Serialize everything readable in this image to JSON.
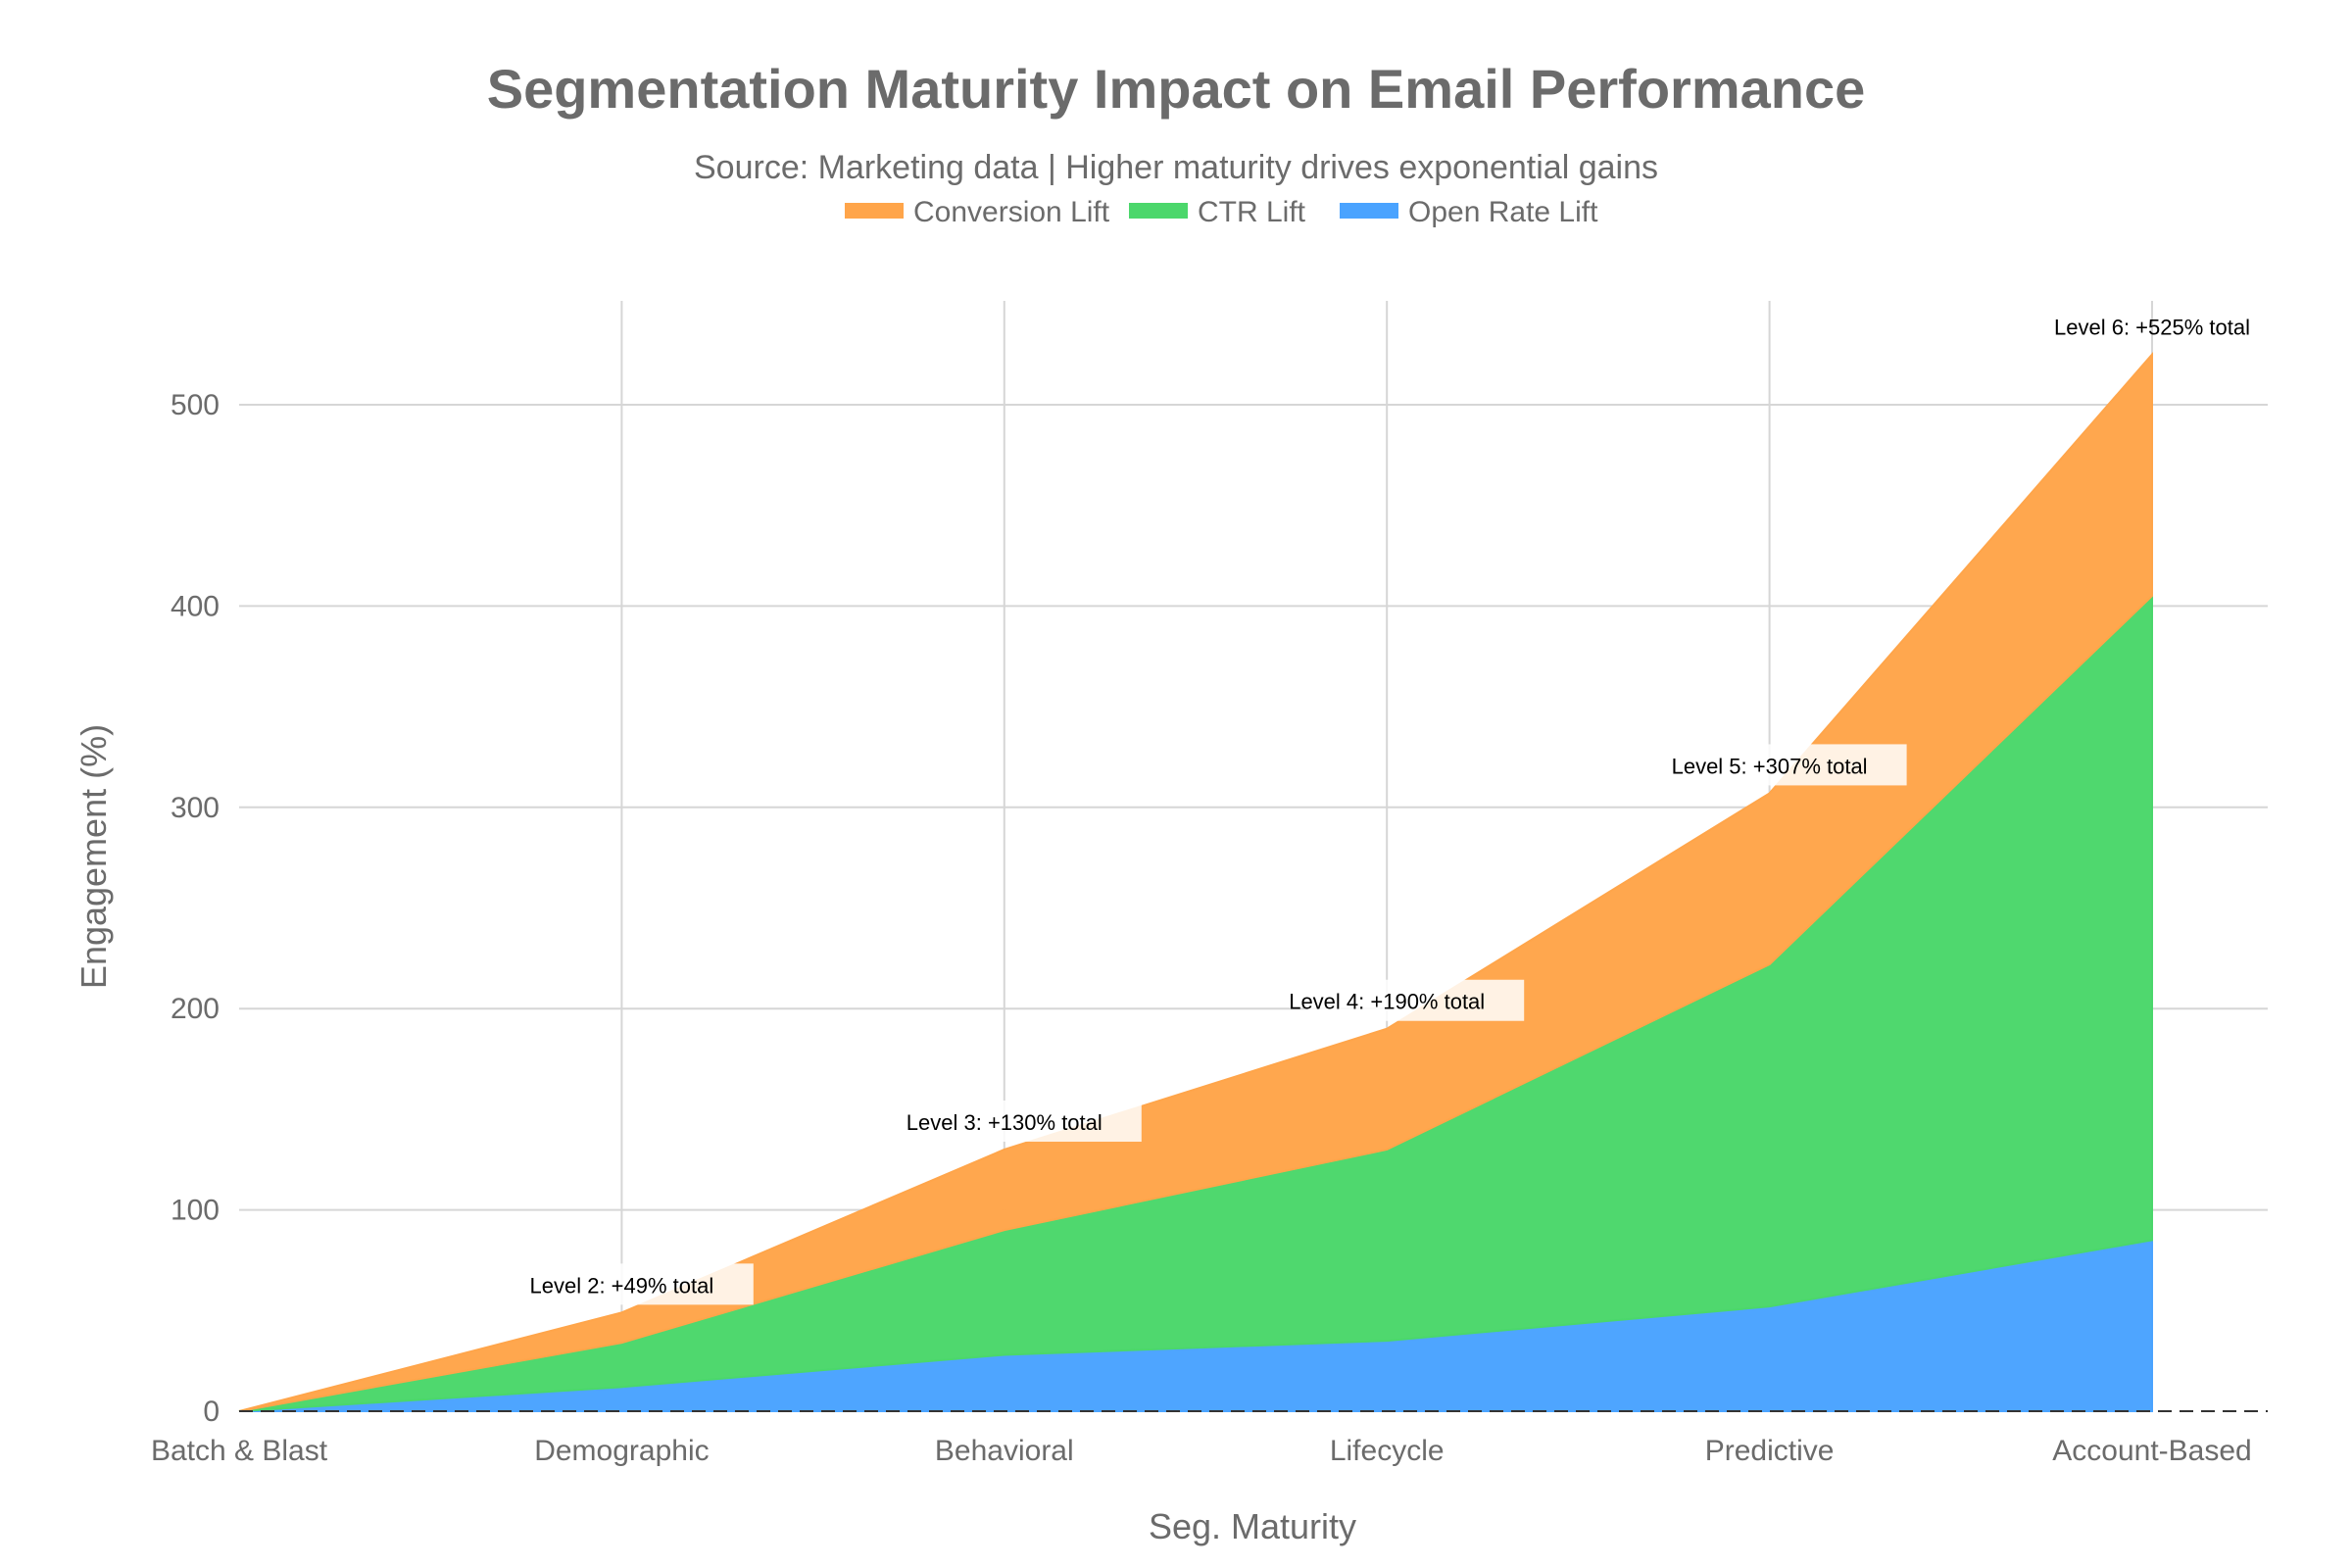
{
  "chart_data": {
    "type": "area",
    "stacked": true,
    "title": "Segmentation Maturity Impact on Email Performance",
    "subtitle": "Source: Marketing data | Higher maturity drives exponential gains",
    "xlabel": "Seg. Maturity",
    "ylabel": "Engagement (%)",
    "categories": [
      "Batch & Blast",
      "Demographic",
      "Behavioral",
      "Lifecycle",
      "Predictive",
      "Account-Based"
    ],
    "ylim": [
      0,
      550
    ],
    "yticks": [
      0,
      100,
      200,
      300,
      400,
      500
    ],
    "grid": true,
    "legend_position": "top-center",
    "series": [
      {
        "name": "Open Rate Lift",
        "values": [
          0,
          12,
          28,
          35,
          52,
          85
        ],
        "color": "#4aa3ff"
      },
      {
        "name": "CTR Lift",
        "values": [
          0,
          22,
          62,
          95,
          170,
          320
        ],
        "color": "#4bd76b"
      },
      {
        "name": "Conversion Lift",
        "values": [
          0,
          15,
          40,
          60,
          85,
          120
        ],
        "color": "#ffa54a"
      }
    ],
    "legend_order": [
      "Conversion Lift",
      "CTR Lift",
      "Open Rate Lift"
    ],
    "annotations": [
      {
        "category": "Demographic",
        "y": 49,
        "text": "Level 2: +49% total"
      },
      {
        "category": "Behavioral",
        "y": 130,
        "text": "Level 3: +130% total"
      },
      {
        "category": "Lifecycle",
        "y": 190,
        "text": "Level 4: +190% total"
      },
      {
        "category": "Predictive",
        "y": 307,
        "text": "Level 5: +307% total"
      },
      {
        "category": "Account-Based",
        "y": 525,
        "text": "Level 6: +525% total"
      }
    ]
  }
}
